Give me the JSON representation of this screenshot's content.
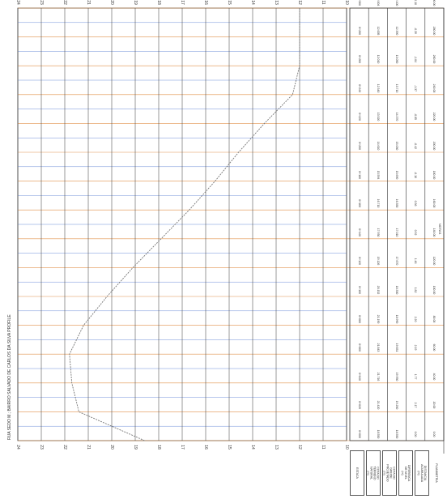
{
  "chart_data": {
    "type": "line",
    "title": "RUA SEDO M.; BAIRRO SALVADO DE CARLOS DA SILVA PROFILE",
    "xlabel": "",
    "ylabel": "",
    "x_ticks": [
      "24",
      "23",
      "22",
      "21",
      "20",
      "19",
      "18",
      "17",
      "16",
      "15",
      "14",
      "13",
      "12",
      "11",
      "10"
    ],
    "stations": [
      "0+000",
      "0+020",
      "0+040",
      "0+060",
      "0+080",
      "0+100",
      "0+120",
      "0+140",
      "0+160",
      "0+180",
      "0+200",
      "0+220",
      "0+240",
      "0+260",
      "0+280",
      "0+300"
    ],
    "series": [
      {
        "values": [
          18.6,
          21.4,
          21.7,
          21.8,
          21.2,
          20.2,
          19.1,
          17.9,
          16.7,
          15.6,
          14.6,
          13.5,
          12.3,
          12.0,
          12.0,
          12.0
        ]
      }
    ],
    "grid": true,
    "table": {
      "rows": [
        {
          "label": "ESTACA",
          "values": [
            "0+000",
            "0+020",
            "0+040",
            "0+060",
            "0+080",
            "0+100",
            "0+120",
            "0+140",
            "0+160",
            "0+180",
            "0+200",
            "0+220",
            "0+240",
            "0+260",
            "0+280",
            "0+300"
          ]
        },
        {
          "label": "COTA DO TERRENO NATURAL (m)",
          "values": [
            "18.550",
            "21.420",
            "21.716",
            "21.843",
            "21.190",
            "20.152",
            "19.126",
            "17.930",
            "16.710",
            "15.594",
            "14.610",
            "13.520",
            "12.340",
            "12.010",
            "12.005",
            "12.004"
          ]
        },
        {
          "label": "COTA DO GREIDE PROJETADO (m)",
          "values": [
            "18.550",
            "19.250",
            "19.950",
            "19.651",
            "18.990",
            "18.330",
            "17.670",
            "17.010",
            "16.350",
            "15.690",
            "15.030",
            "14.370",
            "13.710",
            "13.050",
            "12.390",
            "12.100"
          ]
        },
        {
          "label": "DIFERENCA DE NIVEL (m)",
          "values": [
            "0.00",
            "2.17",
            "1.77",
            "2.19",
            "2.20",
            "1.82",
            "1.46",
            "0.92",
            "0.36",
            "-0.10",
            "-0.42",
            "-0.85",
            "-1.37",
            "-1.04",
            "-0.39",
            "-0.10"
          ]
        },
        {
          "label": "DISTANCIA ACUMULADA (m)",
          "values": [
            "0.00",
            "20.00",
            "40.00",
            "60.00",
            "80.00",
            "100.00",
            "120.00",
            "140.00",
            "160.00",
            "180.00",
            "200.00",
            "220.00",
            "240.00",
            "260.00",
            "280.00",
            "300.00"
          ]
        }
      ]
    }
  },
  "note_label": "NOTAS",
  "extra_legend": "PLANIMETRIA"
}
